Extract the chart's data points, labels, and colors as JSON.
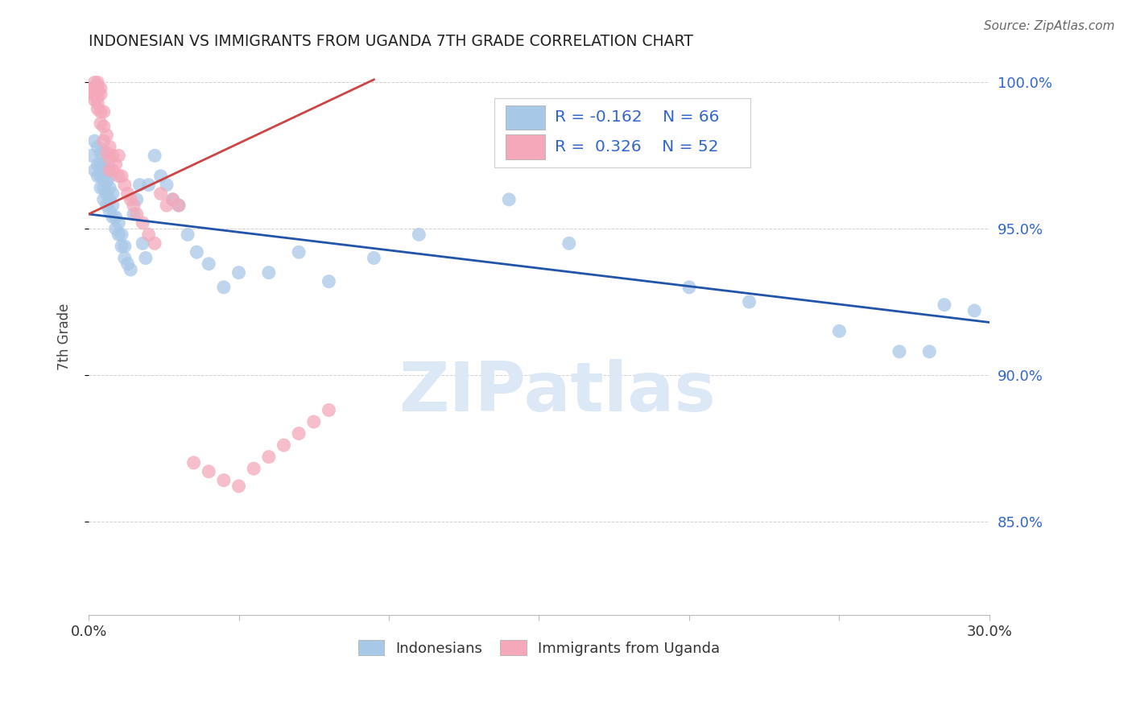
{
  "title": "INDONESIAN VS IMMIGRANTS FROM UGANDA 7TH GRADE CORRELATION CHART",
  "source": "Source: ZipAtlas.com",
  "ylabel": "7th Grade",
  "watermark": "ZIPatlas",
  "legend_blue_R": "R = -0.162",
  "legend_blue_N": "N = 66",
  "legend_pink_R": "R =  0.326",
  "legend_pink_N": "N = 52",
  "legend_label1": "Indonesians",
  "legend_label2": "Immigrants from Uganda",
  "blue_color": "#a8c8e8",
  "pink_color": "#f4a8ba",
  "blue_line_color": "#2255aa",
  "pink_line_color": "#cc4444",
  "xlim": [
    0.0,
    0.3
  ],
  "ylim": [
    0.818,
    1.008
  ],
  "blue_scatter_x": [
    0.001,
    0.002,
    0.002,
    0.003,
    0.003,
    0.003,
    0.004,
    0.004,
    0.004,
    0.004,
    0.005,
    0.005,
    0.005,
    0.005,
    0.005,
    0.006,
    0.006,
    0.006,
    0.006,
    0.007,
    0.007,
    0.007,
    0.007,
    0.008,
    0.008,
    0.008,
    0.009,
    0.009,
    0.01,
    0.01,
    0.011,
    0.011,
    0.012,
    0.012,
    0.013,
    0.014,
    0.015,
    0.016,
    0.017,
    0.018,
    0.019,
    0.02,
    0.022,
    0.024,
    0.026,
    0.028,
    0.03,
    0.033,
    0.036,
    0.04,
    0.045,
    0.05,
    0.06,
    0.07,
    0.08,
    0.095,
    0.11,
    0.14,
    0.16,
    0.2,
    0.22,
    0.25,
    0.27,
    0.28,
    0.285,
    0.295
  ],
  "blue_scatter_y": [
    0.975,
    0.97,
    0.98,
    0.968,
    0.972,
    0.978,
    0.964,
    0.968,
    0.972,
    0.976,
    0.96,
    0.964,
    0.968,
    0.972,
    0.976,
    0.958,
    0.962,
    0.966,
    0.97,
    0.956,
    0.96,
    0.964,
    0.968,
    0.954,
    0.958,
    0.962,
    0.95,
    0.954,
    0.948,
    0.952,
    0.944,
    0.948,
    0.94,
    0.944,
    0.938,
    0.936,
    0.955,
    0.96,
    0.965,
    0.945,
    0.94,
    0.965,
    0.975,
    0.968,
    0.965,
    0.96,
    0.958,
    0.948,
    0.942,
    0.938,
    0.93,
    0.935,
    0.935,
    0.942,
    0.932,
    0.94,
    0.948,
    0.96,
    0.945,
    0.93,
    0.925,
    0.915,
    0.908,
    0.908,
    0.924,
    0.922
  ],
  "pink_scatter_x": [
    0.001,
    0.001,
    0.002,
    0.002,
    0.002,
    0.002,
    0.003,
    0.003,
    0.003,
    0.003,
    0.003,
    0.003,
    0.004,
    0.004,
    0.004,
    0.004,
    0.005,
    0.005,
    0.005,
    0.006,
    0.006,
    0.007,
    0.007,
    0.007,
    0.008,
    0.008,
    0.009,
    0.01,
    0.01,
    0.011,
    0.012,
    0.013,
    0.014,
    0.015,
    0.016,
    0.018,
    0.02,
    0.022,
    0.024,
    0.026,
    0.028,
    0.03,
    0.035,
    0.04,
    0.045,
    0.05,
    0.055,
    0.06,
    0.065,
    0.07,
    0.075,
    0.08
  ],
  "pink_scatter_y": [
    0.998,
    0.996,
    1.0,
    0.998,
    0.996,
    0.994,
    1.0,
    0.999,
    0.997,
    0.995,
    0.993,
    0.991,
    0.998,
    0.996,
    0.99,
    0.986,
    0.99,
    0.985,
    0.98,
    0.982,
    0.976,
    0.978,
    0.974,
    0.97,
    0.975,
    0.97,
    0.972,
    0.975,
    0.968,
    0.968,
    0.965,
    0.962,
    0.96,
    0.958,
    0.955,
    0.952,
    0.948,
    0.945,
    0.962,
    0.958,
    0.96,
    0.958,
    0.87,
    0.867,
    0.864,
    0.862,
    0.868,
    0.872,
    0.876,
    0.88,
    0.884,
    0.888
  ],
  "blue_trendline_x": [
    0.0,
    0.3
  ],
  "blue_trendline_y": [
    0.955,
    0.918
  ],
  "pink_trendline_x": [
    0.0,
    0.095
  ],
  "pink_trendline_y": [
    0.955,
    1.001
  ]
}
